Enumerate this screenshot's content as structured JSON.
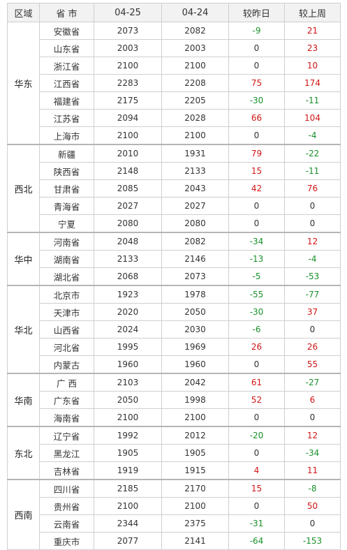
{
  "headers": [
    "区域",
    "省 市",
    "04-25",
    "04-24",
    "较昨日",
    "较上周"
  ],
  "colors": {
    "up": "#d21414",
    "down": "#18902a",
    "flat": "#333333",
    "header_bg": "#f2f2f2"
  },
  "groups": [
    {
      "region": "华东",
      "rows": [
        [
          "安徽省",
          "2073",
          "2082",
          "-9",
          "21"
        ],
        [
          "山东省",
          "2003",
          "2003",
          "0",
          "23"
        ],
        [
          "浙江省",
          "2100",
          "2100",
          "0",
          "10"
        ],
        [
          "江西省",
          "2283",
          "2208",
          "75",
          "174"
        ],
        [
          "福建省",
          "2175",
          "2205",
          "-30",
          "-11"
        ],
        [
          "江苏省",
          "2094",
          "2028",
          "66",
          "104"
        ],
        [
          "上海市",
          "2100",
          "2100",
          "0",
          "-4"
        ]
      ]
    },
    {
      "region": "西北",
      "rows": [
        [
          "新疆",
          "2010",
          "1931",
          "79",
          "-22"
        ],
        [
          "陕西省",
          "2148",
          "2133",
          "15",
          "-11"
        ],
        [
          "甘肃省",
          "2085",
          "2043",
          "42",
          "76"
        ],
        [
          "青海省",
          "2027",
          "2027",
          "0",
          "0"
        ],
        [
          "宁夏",
          "2080",
          "2080",
          "0",
          "0"
        ]
      ]
    },
    {
      "region": "华中",
      "rows": [
        [
          "河南省",
          "2048",
          "2082",
          "-34",
          "12"
        ],
        [
          "湖南省",
          "2133",
          "2146",
          "-13",
          "-4"
        ],
        [
          "湖北省",
          "2068",
          "2073",
          "-5",
          "-53"
        ]
      ]
    },
    {
      "region": "华北",
      "rows": [
        [
          "北京市",
          "1923",
          "1978",
          "-55",
          "-77"
        ],
        [
          "天津市",
          "2020",
          "2050",
          "-30",
          "37"
        ],
        [
          "山西省",
          "2024",
          "2030",
          "-6",
          "0"
        ],
        [
          "河北省",
          "1995",
          "1969",
          "26",
          "26"
        ],
        [
          "内蒙古",
          "1960",
          "1960",
          "0",
          "55"
        ]
      ]
    },
    {
      "region": "华南",
      "rows": [
        [
          "广 西",
          "2103",
          "2042",
          "61",
          "-27"
        ],
        [
          "广东省",
          "2050",
          "1998",
          "52",
          "6"
        ],
        [
          "海南省",
          "2100",
          "2100",
          "0",
          "0"
        ]
      ]
    },
    {
      "region": "东北",
      "rows": [
        [
          "辽宁省",
          "1992",
          "2012",
          "-20",
          "12"
        ],
        [
          "黑龙江",
          "1905",
          "1905",
          "0",
          "-34"
        ],
        [
          "吉林省",
          "1919",
          "1915",
          "4",
          "11"
        ]
      ]
    },
    {
      "region": "西南",
      "rows": [
        [
          "四川省",
          "2185",
          "2170",
          "15",
          "-8"
        ],
        [
          "贵州省",
          "2100",
          "2100",
          "0",
          "50"
        ],
        [
          "云南省",
          "2344",
          "2375",
          "-31",
          "0"
        ],
        [
          "重庆市",
          "2077",
          "2141",
          "-64",
          "-153"
        ]
      ]
    }
  ]
}
